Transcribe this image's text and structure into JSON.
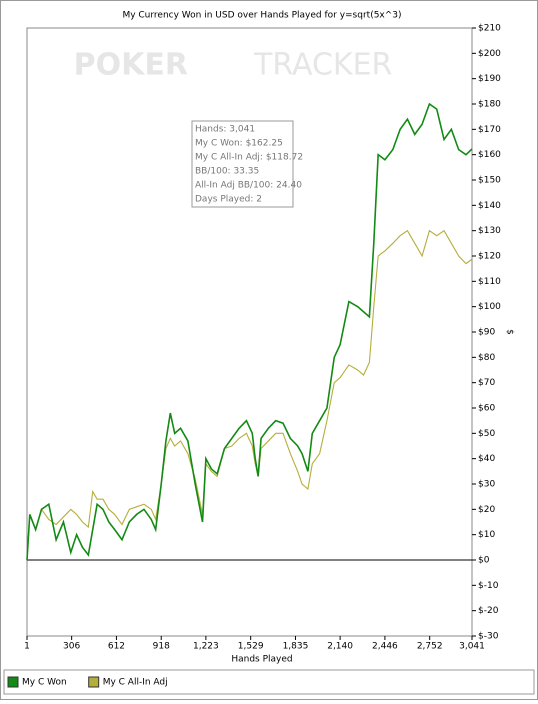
{
  "chart_data": {
    "type": "line",
    "title": "My Currency Won in USD over Hands Played for  y=sqrt(5x^3)",
    "watermark": [
      "POKER",
      "TRACKER"
    ],
    "x_label": "Hands Played",
    "y_label": "$",
    "annotations": [
      "Hands: 3,041",
      "My C Won: $162.25",
      "My C All-In Adj: $118.72",
      "BB/100: 33.35",
      "All-In Adj BB/100: 24.40",
      "Days Played: 2"
    ],
    "xlim": [
      1,
      3041
    ],
    "xticks": [
      1,
      306,
      612,
      918,
      {
        "value": 1223,
        "label": "1,223"
      },
      {
        "value": 1529,
        "label": "1,529"
      },
      {
        "value": 1835,
        "label": "1,835"
      },
      {
        "value": 2140,
        "label": "2,140"
      },
      {
        "value": 2446,
        "label": "2,446"
      },
      {
        "value": 2752,
        "label": "2,752"
      },
      {
        "value": 3041,
        "label": "3,041"
      }
    ],
    "ylim": [
      -30,
      210
    ],
    "yticks": [
      {
        "value": -30,
        "label": "$-30"
      },
      {
        "value": -20,
        "label": "$-20"
      },
      {
        "value": -10,
        "label": "$-10"
      },
      {
        "value": 0,
        "label": "$0"
      },
      {
        "value": 10,
        "label": "$10"
      },
      {
        "value": 20,
        "label": "$20"
      },
      {
        "value": 30,
        "label": "$30"
      },
      {
        "value": 40,
        "label": "$40"
      },
      {
        "value": 50,
        "label": "$50"
      },
      {
        "value": 60,
        "label": "$60"
      },
      {
        "value": 70,
        "label": "$70"
      },
      {
        "value": 80,
        "label": "$80"
      },
      {
        "value": 90,
        "label": "$90"
      },
      {
        "value": 100,
        "label": "$100"
      },
      {
        "value": 110,
        "label": "$110"
      },
      {
        "value": 120,
        "label": "$120"
      },
      {
        "value": 130,
        "label": "$130"
      },
      {
        "value": 140,
        "label": "$140"
      },
      {
        "value": 150,
        "label": "$150"
      },
      {
        "value": 160,
        "label": "$160"
      },
      {
        "value": 170,
        "label": "$170"
      },
      {
        "value": 180,
        "label": "$180"
      },
      {
        "value": 190,
        "label": "$190"
      },
      {
        "value": 200,
        "label": "$200"
      },
      {
        "value": 210,
        "label": "$210"
      }
    ],
    "zero_line": true,
    "x": [
      1,
      20,
      60,
      100,
      150,
      200,
      250,
      300,
      340,
      380,
      420,
      450,
      480,
      520,
      560,
      600,
      650,
      700,
      750,
      800,
      850,
      880,
      918,
      950,
      980,
      1010,
      1050,
      1100,
      1150,
      1200,
      1223,
      1260,
      1300,
      1350,
      1400,
      1450,
      1500,
      1540,
      1560,
      1580,
      1600,
      1650,
      1700,
      1750,
      1800,
      1850,
      1880,
      1920,
      1950,
      2000,
      2050,
      2100,
      2140,
      2200,
      2260,
      2300,
      2340,
      2370,
      2400,
      2446,
      2500,
      2550,
      2600,
      2650,
      2700,
      2750,
      2800,
      2850,
      2900,
      2950,
      3000,
      3041
    ],
    "series": [
      {
        "name": "My C Won",
        "color": "#138a13",
        "values": [
          0,
          18,
          12,
          20,
          22,
          8,
          15,
          3,
          10,
          5,
          2,
          12,
          22,
          20,
          15,
          12,
          8,
          15,
          18,
          20,
          16,
          12,
          30,
          47,
          58,
          50,
          52,
          47,
          30,
          15,
          40,
          36,
          34,
          44,
          48,
          52,
          55,
          50,
          40,
          33,
          48,
          52,
          55,
          54,
          48,
          45,
          42,
          35,
          50,
          55,
          60,
          80,
          85,
          102,
          100,
          98,
          96,
          125,
          160,
          158,
          162,
          170,
          174,
          168,
          172,
          180,
          178,
          166,
          170,
          162,
          160,
          162.25
        ]
      },
      {
        "name": "My C All-In Adj",
        "color": "#b5ae3c",
        "values": [
          0,
          18,
          12,
          20,
          16,
          14,
          17,
          20,
          18,
          15,
          13,
          27,
          24,
          24,
          20,
          18,
          14,
          20,
          21,
          22,
          20,
          16,
          30,
          44,
          48,
          45,
          47,
          42,
          32,
          18,
          38,
          35,
          33,
          44,
          45,
          48,
          50,
          45,
          38,
          33,
          44,
          47,
          50,
          50,
          42,
          35,
          30,
          28,
          38,
          42,
          55,
          70,
          72,
          77,
          75,
          73,
          78,
          100,
          120,
          122,
          125,
          128,
          130,
          125,
          120,
          130,
          128,
          130,
          125,
          120,
          117,
          118.72
        ]
      }
    ]
  }
}
